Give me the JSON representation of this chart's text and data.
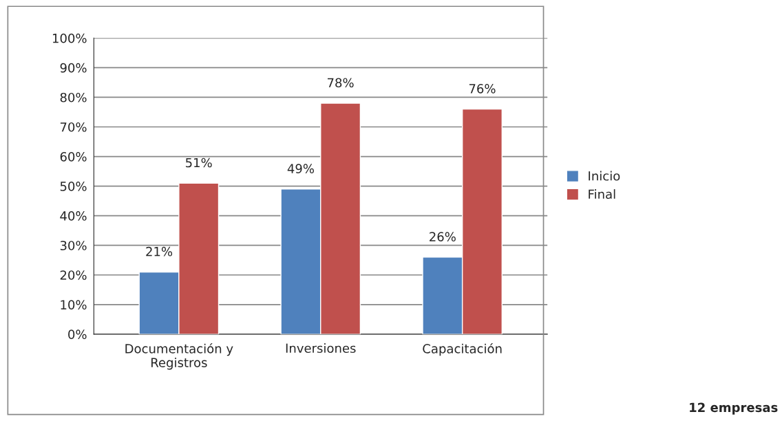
{
  "chart_data": {
    "type": "bar",
    "categories": [
      "Documentación y\nRegistros",
      "Inversiones",
      "Capacitación"
    ],
    "series": [
      {
        "name": "Inicio",
        "color": "#4f81bd",
        "values": [
          21,
          49,
          26
        ],
        "value_labels": [
          "21%",
          "49%",
          "26%"
        ]
      },
      {
        "name": "Final",
        "color": "#c0504d",
        "values": [
          51,
          78,
          76
        ],
        "value_labels": [
          "51%",
          "78%",
          "76%"
        ]
      }
    ],
    "ylim": [
      0,
      100
    ],
    "yticks": [
      {
        "value": 0,
        "label": "0%"
      },
      {
        "value": 10,
        "label": "10%"
      },
      {
        "value": 20,
        "label": "20%"
      },
      {
        "value": 30,
        "label": "30%"
      },
      {
        "value": 40,
        "label": "40%"
      },
      {
        "value": 50,
        "label": "50%"
      },
      {
        "value": 60,
        "label": "60%"
      },
      {
        "value": 70,
        "label": "70%"
      },
      {
        "value": 80,
        "label": "80%"
      },
      {
        "value": 90,
        "label": "90%"
      },
      {
        "value": 100,
        "label": "100%"
      }
    ],
    "grid": "y",
    "legend": "right",
    "annotations": [
      "12 empresas"
    ]
  }
}
